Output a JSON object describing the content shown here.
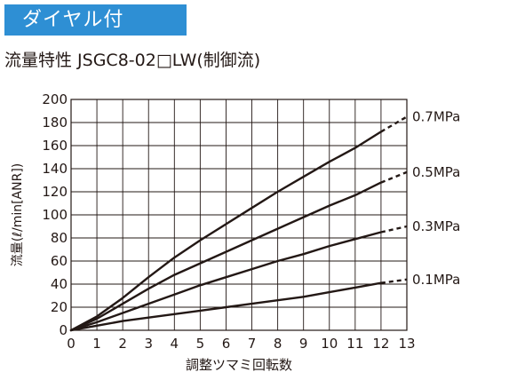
{
  "header": {
    "badge_label": "ダイヤル付",
    "badge_color": "#2e8fd4"
  },
  "chart_data": {
    "type": "line",
    "title": "流量特性 JSGC8-02□LW(制御流)",
    "xlabel": "調整ツマミ回転数",
    "ylabel": "流量(ℓ/min[ANR])",
    "xlim": [
      0,
      13
    ],
    "ylim": [
      0,
      200
    ],
    "x_ticks": [
      0,
      1,
      2,
      3,
      4,
      5,
      6,
      7,
      8,
      9,
      10,
      11,
      12,
      13
    ],
    "y_ticks": [
      0,
      20,
      40,
      60,
      80,
      100,
      120,
      140,
      160,
      180,
      200
    ],
    "grid": true,
    "legend": "series labels at right end of each curve",
    "solid_until_x": 12,
    "dashed_to_x": 13,
    "series": [
      {
        "name": "0.7MPa",
        "x": [
          0,
          1,
          2,
          3,
          4,
          5,
          6,
          7,
          8,
          9,
          10,
          11,
          12,
          13
        ],
        "values": [
          0,
          12,
          28,
          46,
          63,
          78,
          92,
          106,
          120,
          133,
          146,
          158,
          172,
          185
        ]
      },
      {
        "name": "0.5MPa",
        "x": [
          0,
          1,
          2,
          3,
          4,
          5,
          6,
          7,
          8,
          9,
          10,
          11,
          12,
          13
        ],
        "values": [
          0,
          10,
          23,
          36,
          48,
          58,
          68,
          78,
          88,
          98,
          108,
          117,
          128,
          137
        ]
      },
      {
        "name": "0.3MPa",
        "x": [
          0,
          1,
          2,
          3,
          4,
          5,
          6,
          7,
          8,
          9,
          10,
          11,
          12,
          13
        ],
        "values": [
          0,
          7,
          15,
          23,
          31,
          39,
          46,
          53,
          60,
          66,
          73,
          79,
          85,
          90
        ]
      },
      {
        "name": "0.1MPa",
        "x": [
          0,
          1,
          2,
          3,
          4,
          5,
          6,
          7,
          8,
          9,
          10,
          11,
          12,
          13
        ],
        "values": [
          0,
          4,
          8,
          11,
          14,
          17,
          20,
          23,
          26,
          29,
          33,
          37,
          41,
          44
        ]
      }
    ]
  }
}
